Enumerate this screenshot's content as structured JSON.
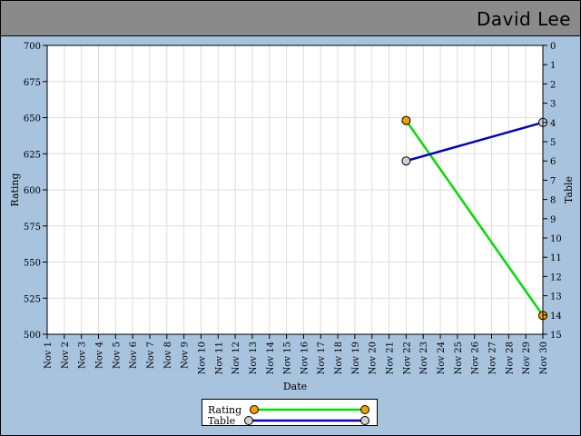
{
  "header": {
    "name": "David Lee"
  },
  "chart_data": {
    "type": "line",
    "xlabel": "Date",
    "ylabel": "Rating",
    "y2label": "Table",
    "categories": [
      "Nov 1",
      "Nov 2",
      "Nov 3",
      "Nov 4",
      "Nov 5",
      "Nov 6",
      "Nov 7",
      "Nov 8",
      "Nov 9",
      "Nov 10",
      "Nov 11",
      "Nov 12",
      "Nov 13",
      "Nov 14",
      "Nov 15",
      "Nov 16",
      "Nov 17",
      "Nov 18",
      "Nov 19",
      "Nov 20",
      "Nov 21",
      "Nov 22",
      "Nov 23",
      "Nov 24",
      "Nov 25",
      "Nov 26",
      "Nov 27",
      "Nov 28",
      "Nov 29",
      "Nov 30"
    ],
    "ylim": [
      500,
      700
    ],
    "yticks": [
      500,
      525,
      550,
      575,
      600,
      625,
      650,
      675,
      700
    ],
    "y2lim": [
      0,
      15
    ],
    "y2_inverted": true,
    "y2ticks": [
      0,
      1,
      2,
      3,
      4,
      5,
      6,
      7,
      8,
      9,
      10,
      11,
      12,
      13,
      14,
      15
    ],
    "grid": true,
    "legend_position": "bottom",
    "series": [
      {
        "name": "Rating",
        "axis": "left",
        "color": "#00dd00",
        "marker": "#f5a000",
        "points": [
          {
            "x": "Nov 22",
            "y": 648
          },
          {
            "x": "Nov 30",
            "y": 513
          }
        ]
      },
      {
        "name": "Table",
        "axis": "right",
        "color": "#0000cc",
        "marker": "#d0d0d0",
        "points": [
          {
            "x": "Nov 22",
            "y": 6
          },
          {
            "x": "Nov 30",
            "y": 4
          }
        ]
      }
    ]
  }
}
